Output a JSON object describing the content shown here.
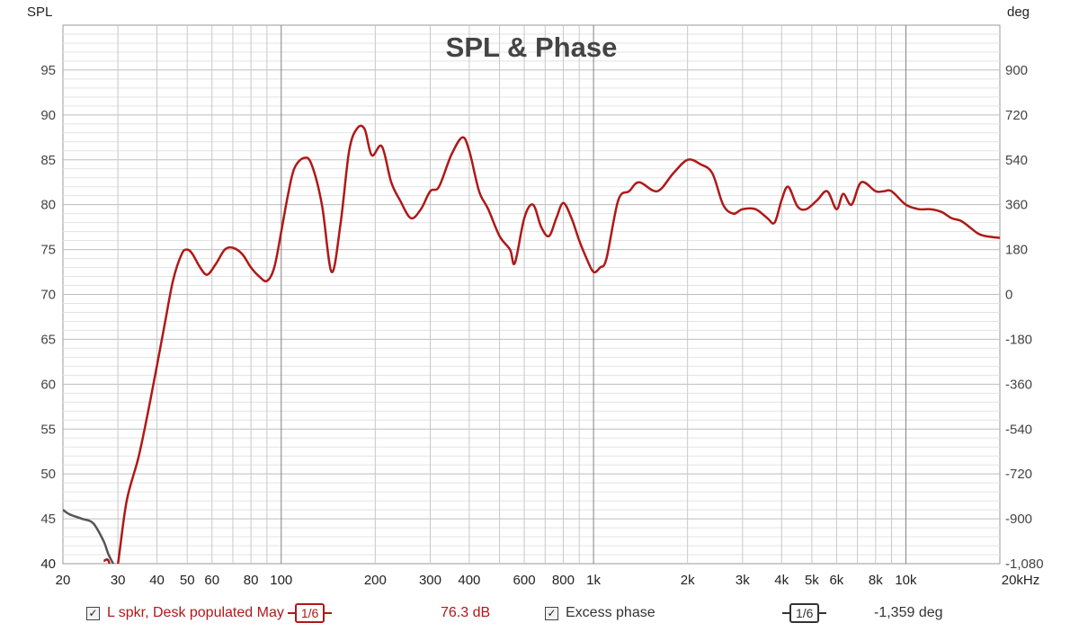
{
  "chart_data": {
    "type": "line",
    "title": "SPL & Phase",
    "ylabel_left": "SPL",
    "ylabel_right": "deg",
    "x_unit": "kHz",
    "x_scale": "log",
    "xlim": [
      20,
      20000
    ],
    "ylim_left": [
      40,
      100
    ],
    "ylim_right": [
      -1080,
      1080
    ],
    "x_ticks": [
      {
        "v": 20,
        "label": "20"
      },
      {
        "v": 30,
        "label": "30"
      },
      {
        "v": 40,
        "label": "40"
      },
      {
        "v": 50,
        "label": "50"
      },
      {
        "v": 60,
        "label": "60"
      },
      {
        "v": 80,
        "label": "80"
      },
      {
        "v": 100,
        "label": "100"
      },
      {
        "v": 200,
        "label": "200"
      },
      {
        "v": 300,
        "label": "300"
      },
      {
        "v": 400,
        "label": "400"
      },
      {
        "v": 600,
        "label": "600"
      },
      {
        "v": 800,
        "label": "800"
      },
      {
        "v": 1000,
        "label": "1k"
      },
      {
        "v": 2000,
        "label": "2k"
      },
      {
        "v": 3000,
        "label": "3k"
      },
      {
        "v": 4000,
        "label": "4k"
      },
      {
        "v": 5000,
        "label": "5k"
      },
      {
        "v": 6000,
        "label": "6k"
      },
      {
        "v": 8000,
        "label": "8k"
      },
      {
        "v": 10000,
        "label": "10k"
      },
      {
        "v": 20000,
        "label": "20kHz"
      }
    ],
    "y_ticks_left": [
      {
        "v": 40,
        "label": "40"
      },
      {
        "v": 45,
        "label": "45"
      },
      {
        "v": 50,
        "label": "50"
      },
      {
        "v": 55,
        "label": "55"
      },
      {
        "v": 60,
        "label": "60"
      },
      {
        "v": 65,
        "label": "65"
      },
      {
        "v": 70,
        "label": "70"
      },
      {
        "v": 75,
        "label": "75"
      },
      {
        "v": 80,
        "label": "80"
      },
      {
        "v": 85,
        "label": "85"
      },
      {
        "v": 90,
        "label": "90"
      },
      {
        "v": 95,
        "label": "95"
      }
    ],
    "y_ticks_right": [
      {
        "v": -1080,
        "label": "-1,080"
      },
      {
        "v": -900,
        "label": "-900"
      },
      {
        "v": -720,
        "label": "-720"
      },
      {
        "v": -540,
        "label": "-540"
      },
      {
        "v": -360,
        "label": "-360"
      },
      {
        "v": -180,
        "label": "-180"
      },
      {
        "v": 0,
        "label": "0"
      },
      {
        "v": 180,
        "label": "180"
      },
      {
        "v": 360,
        "label": "360"
      },
      {
        "v": 540,
        "label": "540"
      },
      {
        "v": 720,
        "label": "720"
      },
      {
        "v": 900,
        "label": "900"
      }
    ],
    "grid": true,
    "series": [
      {
        "name": "L spkr, Desk populated May",
        "axis": "left",
        "color": "#b01818",
        "x": [
          27,
          28,
          29,
          30,
          32,
          35,
          38,
          42,
          45,
          48,
          50,
          52,
          55,
          58,
          62,
          66,
          70,
          75,
          80,
          85,
          90,
          95,
          100,
          105,
          110,
          118,
          125,
          135,
          145,
          155,
          165,
          175,
          185,
          195,
          210,
          225,
          240,
          260,
          280,
          300,
          320,
          350,
          380,
          400,
          430,
          460,
          500,
          540,
          560,
          600,
          640,
          680,
          720,
          760,
          800,
          850,
          900,
          950,
          1000,
          1050,
          1100,
          1200,
          1300,
          1400,
          1600,
          1800,
          2000,
          2200,
          2400,
          2600,
          2800,
          3000,
          3300,
          3600,
          3800,
          4000,
          4200,
          4500,
          4800,
          5200,
          5600,
          6000,
          6300,
          6700,
          7200,
          8000,
          8500,
          9000,
          10000,
          11000,
          12000,
          13000,
          14000,
          15000,
          16000,
          17000,
          18000,
          20000
        ],
        "y": [
          40.3,
          40.3,
          38,
          40,
          47,
          52,
          58,
          66,
          71.5,
          74.5,
          75,
          74.5,
          73,
          72.2,
          73.5,
          75,
          75.2,
          74.5,
          73,
          72,
          71.5,
          73,
          77,
          81,
          84,
          85.2,
          84.5,
          80,
          72.5,
          78,
          86,
          88.5,
          88.4,
          85.5,
          86.5,
          82.5,
          80.5,
          78.5,
          79.5,
          81.5,
          82,
          85.5,
          87.5,
          86,
          81.5,
          79.5,
          76.5,
          75,
          73.5,
          78.5,
          80,
          77.5,
          76.5,
          78.5,
          80.2,
          78.5,
          76,
          74,
          72.5,
          73,
          74,
          80.5,
          81.5,
          82.5,
          81.5,
          83.5,
          85,
          84.5,
          83.5,
          80,
          79,
          79.5,
          79.5,
          78.5,
          78,
          80.5,
          82,
          79.8,
          79.5,
          80.5,
          81.5,
          79.5,
          81.2,
          80,
          82.5,
          81.5,
          81.5,
          81.5,
          80,
          79.5,
          79.5,
          79.2,
          78.5,
          78.2,
          77.5,
          76.8,
          76.5,
          76.3
        ]
      },
      {
        "name": "Excess phase",
        "axis": "left",
        "color": "#555555",
        "x": [
          20,
          21,
          23,
          25,
          27,
          28,
          29.5
        ],
        "y": [
          46,
          45.5,
          45,
          44.5,
          42.5,
          41,
          39.5
        ]
      }
    ],
    "cursor_readouts": [
      "76.3 dB",
      "-1,359 deg"
    ]
  },
  "legend": {
    "items": [
      {
        "label": "L spkr, Desk populated May",
        "smoothing": "1/6",
        "value": "76.3 dB",
        "checked": true,
        "color": "#b01818"
      },
      {
        "label": "Excess phase",
        "smoothing": "1/6",
        "value": "-1,359 deg",
        "checked": true,
        "color": "#333333"
      }
    ]
  }
}
